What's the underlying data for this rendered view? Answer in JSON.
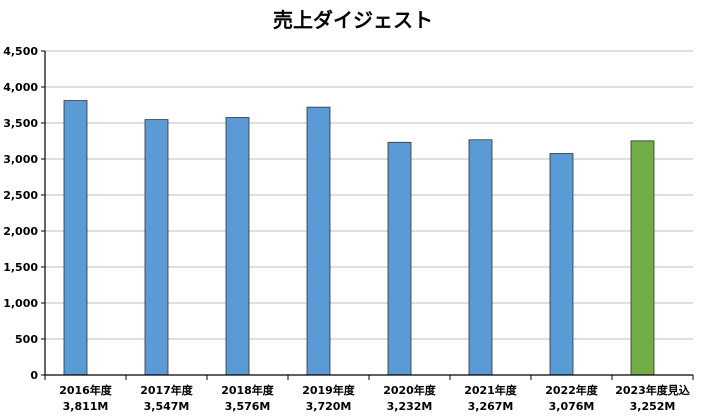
{
  "chart_data": {
    "type": "bar",
    "title": "売上ダイジェスト",
    "categories": [
      "2016年度",
      "2017年度",
      "2018年度",
      "2019年度",
      "2020年度",
      "2021年度",
      "2022年度",
      "2023年度見込"
    ],
    "value_labels": [
      "3,811M",
      "3,547M",
      "3,576M",
      "3,720M",
      "3,232M",
      "3,267M",
      "3,076M",
      "3,252M"
    ],
    "values": [
      3811,
      3547,
      3576,
      3720,
      3232,
      3267,
      3076,
      3252
    ],
    "ylim": [
      0,
      4500
    ],
    "yticks": [
      "0",
      "500",
      "1,000",
      "1,500",
      "2,000",
      "2,500",
      "3,000",
      "3,500",
      "4,000",
      "4,500"
    ],
    "grid": true,
    "colors": {
      "actual": "#5b9bd5",
      "forecast": "#70ad47",
      "grid": "#bfbfbf",
      "axis": "#000000"
    },
    "highlight_index": 7
  }
}
